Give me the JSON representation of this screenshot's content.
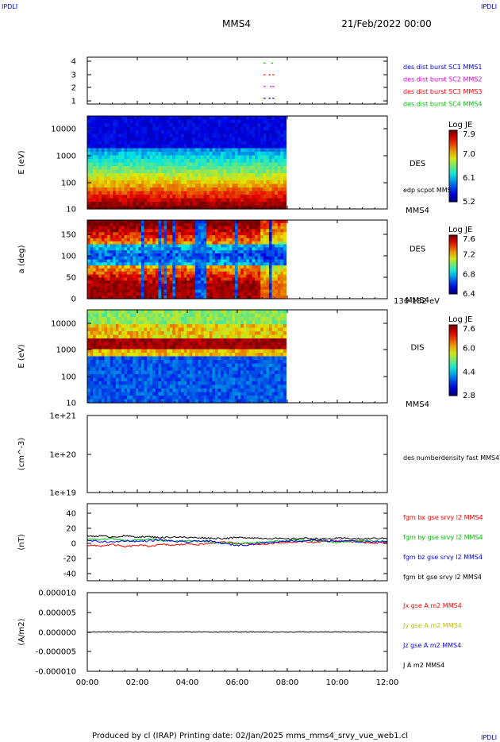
{
  "corners": {
    "top_left": "IPDLI",
    "top_right": "IPDLI",
    "bottom_right": "IPDLI"
  },
  "header": {
    "title": "MMS4",
    "date": "21/Feb/2022 00:00"
  },
  "footer": {
    "text": "Produced by cl (IRAP)   Printing date: 02/Jan/2025   mms_mms4_srvy_vue_web1.cl"
  },
  "colors": {
    "mms1": "#0000ff",
    "mms2": "#e000e0",
    "mms3": "#ff0000",
    "mms4": "#00c000",
    "total": "#000000"
  },
  "x_axis": {
    "range_hours": [
      0,
      12
    ],
    "tick_labels": [
      "00:00",
      "02:00",
      "04:00",
      "06:00",
      "08:00",
      "10:00",
      "12:00"
    ]
  },
  "chart_data": [
    {
      "type": "scatter",
      "name": "burst availability",
      "ylabel": "",
      "y_ticks": [
        "4",
        "3",
        "2",
        "1"
      ],
      "ylim": [
        0.5,
        4.5
      ],
      "legend": [
        {
          "label": "des dist burst SC1 MMS1",
          "color": "#0000ff"
        },
        {
          "label": "des dist burst SC2 MMS2",
          "color": "#e000e0"
        },
        {
          "label": "des dist burst SC3 MMS3",
          "color": "#ff0000"
        },
        {
          "label": "des dist burst SC4 MMS4",
          "color": "#00c000"
        }
      ],
      "series": [
        {
          "sc": 4,
          "x_hours": [
            7.05,
            7.35
          ],
          "color": "#00c000"
        },
        {
          "sc": 3,
          "x_hours": [
            7.05,
            7.25,
            7.4
          ],
          "color": "#ff0000"
        },
        {
          "sc": 2,
          "x_hours": [
            7.05,
            7.3,
            7.4
          ],
          "color": "#e000e0"
        },
        {
          "sc": 1,
          "x_hours": [
            7.05,
            7.25,
            7.4
          ],
          "color": "#0000ff"
        }
      ]
    },
    {
      "type": "heatmap",
      "name": "DES energy spectrogram",
      "ylabel": "E (eV)",
      "y_ticks": [
        "10000",
        "1000",
        "100",
        "10"
      ],
      "y_scale": "log",
      "ylim": [
        10,
        30000
      ],
      "data_end_hours": 7.95,
      "label": "DES",
      "sub_label": "MMS4",
      "extra_label": "edp scpot MMS4",
      "colorbar": {
        "title": "Log JE",
        "ticks": [
          "7.9",
          "7.0",
          "6.1",
          "5.2"
        ],
        "range": [
          5.2,
          7.9
        ]
      }
    },
    {
      "type": "heatmap",
      "name": "DES pitch angle",
      "ylabel": "a (deg)",
      "y_ticks": [
        "150",
        "100",
        "50",
        "0"
      ],
      "ylim": [
        0,
        180
      ],
      "data_end_hours": 7.95,
      "label": "DES",
      "sub_label": "MMS4",
      "energy_label": "136-182 eV",
      "colorbar": {
        "title": "Log JE",
        "ticks": [
          "7.6",
          "7.2",
          "6.8",
          "6.4"
        ],
        "range": [
          6.4,
          7.6
        ]
      }
    },
    {
      "type": "heatmap",
      "name": "DIS energy spectrogram",
      "ylabel": "E (eV)",
      "y_ticks": [
        "10000",
        "1000",
        "100",
        "10"
      ],
      "y_scale": "log",
      "ylim": [
        10,
        30000
      ],
      "data_end_hours": 7.95,
      "label": "DIS",
      "sub_label": "MMS4",
      "colorbar": {
        "title": "Log JE",
        "ticks": [
          "7.6",
          "6.0",
          "4.4",
          "2.8"
        ],
        "range": [
          2.8,
          7.6
        ]
      }
    },
    {
      "type": "line",
      "name": "electron density",
      "ylabel": "(cm^-3)",
      "y_ticks": [
        "1e+21",
        "1e+20",
        "1e+19"
      ],
      "y_scale": "log",
      "ylim": [
        1e+19,
        1e+21
      ],
      "legend": [
        {
          "label": "des numberdensity fast MMS4",
          "color": "#000000"
        }
      ],
      "series": []
    },
    {
      "type": "line",
      "name": "magnetic field",
      "ylabel": "(nT)",
      "y_ticks": [
        "40",
        "20",
        "0",
        "-20",
        "-40"
      ],
      "ylim": [
        -50,
        50
      ],
      "legend": [
        {
          "label": "fgm bx gse srvy l2 MMS4",
          "color": "#ff0000"
        },
        {
          "label": "fgm by gse srvy l2 MMS4",
          "color": "#00c000"
        },
        {
          "label": "fgm bz gse srvy l2 MMS4",
          "color": "#0000ff"
        },
        {
          "label": "fgm bt gse srvy l2 MMS4",
          "color": "#000000"
        }
      ],
      "series": [
        {
          "name": "bx",
          "color": "#ff0000",
          "x_hours": [
            0,
            0.5,
            1,
            1.5,
            2,
            2.5,
            3,
            3.5,
            4,
            4.5,
            5,
            5.5,
            6,
            6.5,
            7,
            7.5,
            8,
            8.5,
            9,
            9.5,
            10,
            10.5,
            11,
            11.5,
            12
          ],
          "values": [
            -4,
            -5,
            -3,
            -6,
            -4,
            -5,
            -3,
            -4,
            -2,
            -3,
            -1,
            0,
            -1,
            -2,
            -3,
            -1,
            0,
            1,
            0,
            1,
            2,
            1,
            0,
            -1,
            0
          ]
        },
        {
          "name": "by",
          "color": "#00c000",
          "x_hours": [
            0,
            0.5,
            1,
            1.5,
            2,
            2.5,
            3,
            3.5,
            4,
            4.5,
            5,
            5.5,
            6,
            6.5,
            7,
            7.5,
            8,
            8.5,
            9,
            9.5,
            10,
            10.5,
            11,
            11.5,
            12
          ],
          "values": [
            4,
            3,
            5,
            2,
            3,
            4,
            2,
            1,
            2,
            1,
            0,
            -1,
            -2,
            -1,
            0,
            1,
            2,
            3,
            2,
            1,
            0,
            1,
            2,
            1,
            2
          ]
        },
        {
          "name": "bz",
          "color": "#0000ff",
          "x_hours": [
            0,
            0.5,
            1,
            1.5,
            2,
            2.5,
            3,
            3.5,
            4,
            4.5,
            5,
            5.5,
            6,
            6.5,
            7,
            7.5,
            8,
            8.5,
            9,
            9.5,
            10,
            10.5,
            11,
            11.5,
            12
          ],
          "values": [
            2,
            1,
            0,
            2,
            1,
            2,
            3,
            1,
            0,
            2,
            1,
            -2,
            -4,
            -3,
            -1,
            0,
            2,
            1,
            3,
            2,
            1,
            2,
            0,
            1,
            1
          ]
        },
        {
          "name": "bt",
          "color": "#000000",
          "x_hours": [
            0,
            0.5,
            1,
            1.5,
            2,
            2.5,
            3,
            3.5,
            4,
            4.5,
            5,
            5.5,
            6,
            6.5,
            7,
            7.5,
            8,
            8.5,
            9,
            9.5,
            10,
            10.5,
            11,
            11.5,
            12
          ],
          "values": [
            8,
            8,
            7,
            8,
            7,
            7,
            6,
            7,
            6,
            6,
            5,
            5,
            6,
            6,
            5,
            5,
            4,
            5,
            5,
            4,
            5,
            5,
            4,
            5,
            5
          ]
        }
      ]
    },
    {
      "type": "line",
      "name": "current density",
      "ylabel": "(A/m2)",
      "y_ticks": [
        "0.000010",
        "0.000005",
        "0.000000",
        "-0.000005",
        "-0.000010"
      ],
      "ylim": [
        -1e-05,
        1e-05
      ],
      "legend": [
        {
          "label": "Jx gse A m2 MMS4",
          "color": "#ff0000"
        },
        {
          "label": "Jy gse A m2 MMS4",
          "color": "#c0c000"
        },
        {
          "label": "Jz gse A m2 MMS4",
          "color": "#0000ff"
        },
        {
          "label": "J A m2 MMS4",
          "color": "#000000"
        }
      ],
      "series": [
        {
          "name": "J",
          "color": "#000000",
          "x_hours": [
            0,
            12
          ],
          "values": [
            0,
            0
          ]
        }
      ]
    }
  ]
}
